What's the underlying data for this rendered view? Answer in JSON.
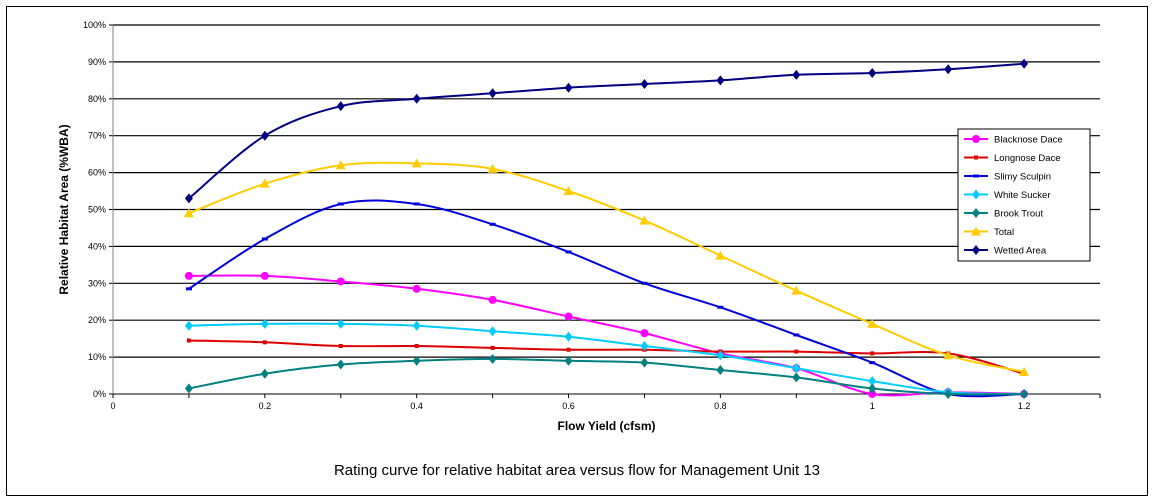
{
  "caption": "Rating curve for relative habitat area versus flow for Management Unit 13",
  "chart_data": {
    "type": "line",
    "xlabel": "Flow Yield (cfsm)",
    "ylabel": "Relative Habitat Area (%WBA)",
    "xlim": [
      0,
      1.3
    ],
    "ylim": [
      0,
      100
    ],
    "x_ticks": [
      "0",
      "0.2",
      "0.4",
      "0.6",
      "0.8",
      "1",
      "1.2"
    ],
    "y_ticks": [
      "0%",
      "10%",
      "20%",
      "30%",
      "40%",
      "50%",
      "60%",
      "70%",
      "80%",
      "90%",
      "100%"
    ],
    "grid": "horizontal major gridlines",
    "legend_position": "right",
    "x": [
      0.1,
      0.2,
      0.3,
      0.4,
      0.5,
      0.6,
      0.7,
      0.8,
      0.9,
      1.0,
      1.1,
      1.2
    ],
    "series": [
      {
        "name": "Blacknose Dace",
        "color": "#ff00ff",
        "marker": "circle",
        "values": [
          32,
          32,
          30.5,
          28.5,
          25.5,
          21,
          16.5,
          11,
          7,
          0,
          0.5,
          0
        ]
      },
      {
        "name": "Longnose Dace",
        "color": "#dd0000",
        "marker": "small-square",
        "values": [
          14.5,
          14,
          13,
          13,
          12.5,
          12,
          12,
          11.5,
          11.5,
          11,
          11,
          5.5
        ]
      },
      {
        "name": "Slimy Sculpin",
        "color": "#0000dd",
        "marker": "dash",
        "values": [
          28.5,
          42,
          51.5,
          51.5,
          46,
          38.5,
          30,
          23.5,
          16,
          8.5,
          0,
          0
        ]
      },
      {
        "name": "White Sucker",
        "color": "#00ccff",
        "marker": "diamond",
        "values": [
          18.5,
          19,
          19,
          18.5,
          17,
          15.5,
          13,
          10.5,
          7,
          3.5,
          0.5,
          0
        ]
      },
      {
        "name": "Brook Trout",
        "color": "#008080",
        "marker": "diamond",
        "values": [
          1.5,
          5.5,
          8,
          9,
          9.5,
          9,
          8.5,
          6.5,
          4.5,
          1.5,
          0,
          0
        ]
      },
      {
        "name": "Total",
        "color": "#ffcc00",
        "marker": "triangle",
        "values": [
          49,
          57,
          62,
          62.5,
          61,
          55,
          47,
          37.5,
          28,
          19,
          10.5,
          6
        ]
      },
      {
        "name": "Wetted Area",
        "color": "#000080",
        "marker": "diamond",
        "values": [
          53,
          70,
          78,
          80,
          81.5,
          83,
          84,
          85,
          86.5,
          87,
          88,
          89.5
        ]
      }
    ]
  }
}
